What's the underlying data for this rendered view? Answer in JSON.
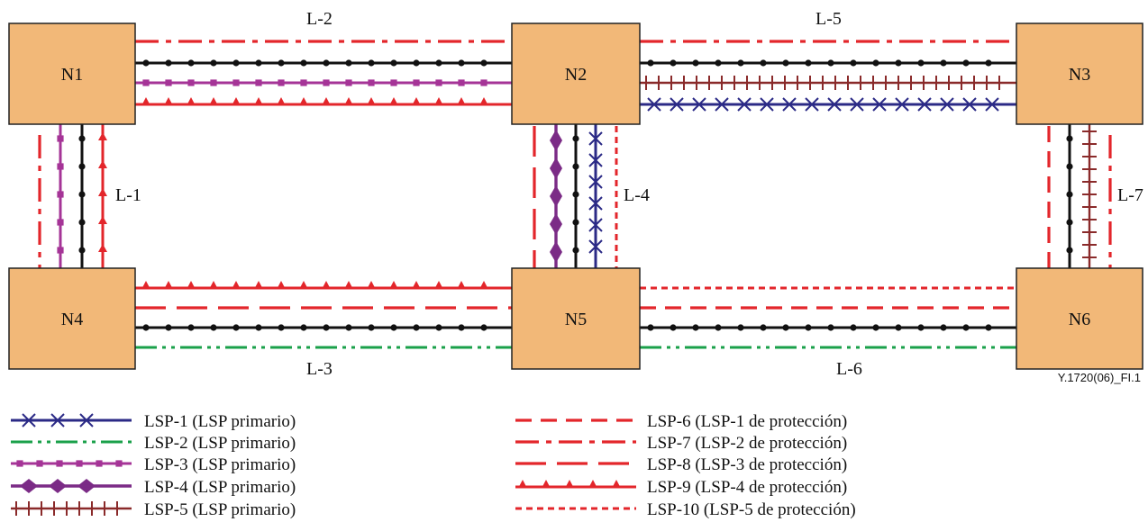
{
  "nodes": [
    {
      "id": "N1",
      "label": "N1"
    },
    {
      "id": "N2",
      "label": "N2"
    },
    {
      "id": "N3",
      "label": "N3"
    },
    {
      "id": "N4",
      "label": "N4"
    },
    {
      "id": "N5",
      "label": "N5"
    },
    {
      "id": "N6",
      "label": "N6"
    }
  ],
  "links": [
    {
      "id": "L-1",
      "label": "L-1"
    },
    {
      "id": "L-2",
      "label": "L-2"
    },
    {
      "id": "L-3",
      "label": "L-3"
    },
    {
      "id": "L-4",
      "label": "L-4"
    },
    {
      "id": "L-5",
      "label": "L-5"
    },
    {
      "id": "L-6",
      "label": "L-6"
    },
    {
      "id": "L-7",
      "label": "L-7"
    }
  ],
  "figure_ref": "Y.1720(06)_FI.1",
  "legend": [
    {
      "id": "LSP-1",
      "label": "LSP-1 (LSP primario)",
      "style": "x-marks",
      "color": "#2b2a86"
    },
    {
      "id": "LSP-2",
      "label": "LSP-2 (LSP primario)",
      "style": "dash-dot",
      "color": "#1aa04a"
    },
    {
      "id": "LSP-3",
      "label": "LSP-3 (LSP primario)",
      "style": "squares",
      "color": "#a53497"
    },
    {
      "id": "LSP-4",
      "label": "LSP-4 (LSP primario)",
      "style": "diamonds",
      "color": "#7b2b86"
    },
    {
      "id": "LSP-5",
      "label": "LSP-5 (LSP primario)",
      "style": "ticks",
      "color": "#8a2a2a"
    },
    {
      "id": "LSP-6",
      "label": "LSP-6 (LSP-1 de protección)",
      "style": "dashed",
      "color": "#e3262b"
    },
    {
      "id": "LSP-7",
      "label": "LSP-7 (LSP-2 de protección)",
      "style": "long-dash-dot",
      "color": "#e3262b"
    },
    {
      "id": "LSP-8",
      "label": "LSP-8 (LSP-3 de protección)",
      "style": "long-dash",
      "color": "#e3262b"
    },
    {
      "id": "LSP-9",
      "label": "LSP-9 (LSP-4 de protección)",
      "style": "triangles",
      "color": "#e3262b"
    },
    {
      "id": "LSP-10",
      "label": "LSP-10 (LSP-5 de protección)",
      "style": "dotted",
      "color": "#e3262b"
    }
  ],
  "colors": {
    "node_fill": "#f2b878",
    "node_stroke": "#222222",
    "physical_link": "#111111",
    "protection": "#e3262b",
    "lsp1": "#2b2a86",
    "lsp2": "#1aa04a",
    "lsp3": "#a53497",
    "lsp4": "#7b2b86",
    "lsp5": "#8a2a2a"
  }
}
